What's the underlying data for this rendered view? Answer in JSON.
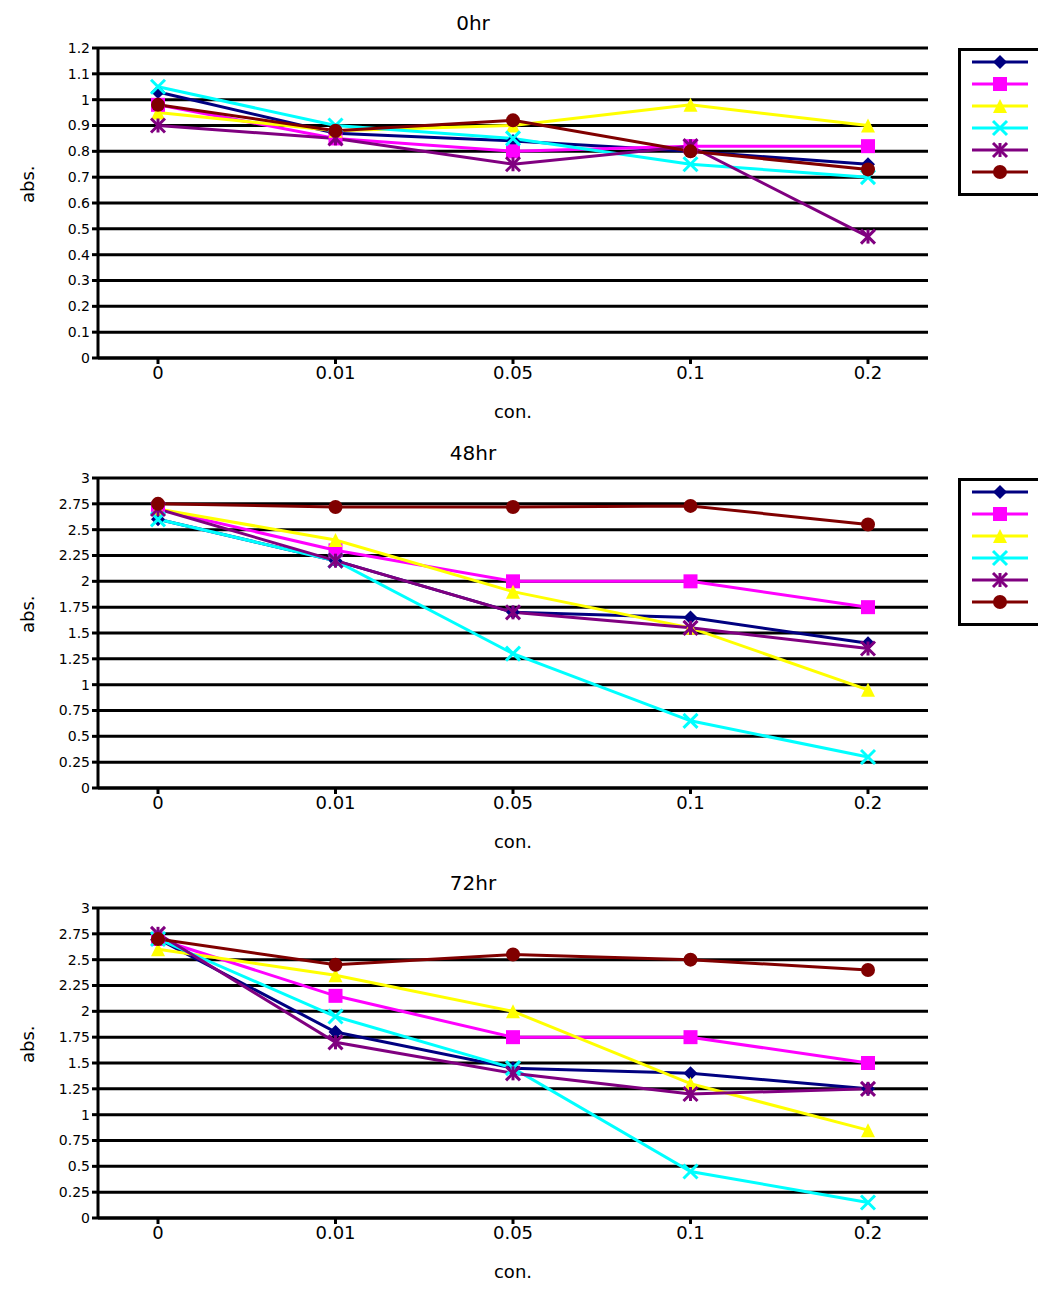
{
  "chart_data": [
    {
      "type": "line",
      "title": "0hr",
      "x_label": "con.",
      "y_label": "abs.",
      "categories": [
        "0",
        "0.01",
        "0.05",
        "0.1",
        "0.2"
      ],
      "ylim": [
        0,
        1.2
      ],
      "yticks": [
        0,
        0.1,
        0.2,
        0.3,
        0.4,
        0.5,
        0.6,
        0.7,
        0.8,
        0.9,
        1,
        1.1,
        1.2
      ],
      "grid": true,
      "legend": "right",
      "series": [
        {
          "color": "#000080",
          "marker": "diamond",
          "values": [
            1.03,
            0.87,
            0.84,
            0.8,
            0.75
          ]
        },
        {
          "color": "#ff00ff",
          "marker": "square",
          "values": [
            0.98,
            0.85,
            0.8,
            0.82,
            0.82
          ]
        },
        {
          "color": "#ffff00",
          "marker": "triangle",
          "values": [
            0.95,
            0.88,
            0.9,
            0.98,
            0.9
          ]
        },
        {
          "color": "#00ffff",
          "marker": "x",
          "values": [
            1.05,
            0.9,
            0.85,
            0.75,
            0.7
          ]
        },
        {
          "color": "#800080",
          "marker": "star",
          "values": [
            0.9,
            0.85,
            0.75,
            0.82,
            0.47
          ]
        },
        {
          "color": "#800000",
          "marker": "circle",
          "values": [
            0.98,
            0.88,
            0.92,
            0.8,
            0.73
          ]
        }
      ]
    },
    {
      "type": "line",
      "title": "48hr",
      "x_label": "con.",
      "y_label": "abs.",
      "categories": [
        "0",
        "0.01",
        "0.05",
        "0.1",
        "0.2"
      ],
      "ylim": [
        0,
        3
      ],
      "yticks": [
        0,
        0.25,
        0.5,
        0.75,
        1,
        1.25,
        1.5,
        1.75,
        2,
        2.25,
        2.5,
        2.75,
        3
      ],
      "grid": true,
      "legend": "right",
      "series": [
        {
          "color": "#000080",
          "marker": "diamond",
          "values": [
            2.6,
            2.2,
            1.7,
            1.65,
            1.4
          ]
        },
        {
          "color": "#ff00ff",
          "marker": "square",
          "values": [
            2.7,
            2.3,
            2.0,
            2.0,
            1.75
          ]
        },
        {
          "color": "#ffff00",
          "marker": "triangle",
          "values": [
            2.7,
            2.4,
            1.9,
            1.55,
            0.95
          ]
        },
        {
          "color": "#00ffff",
          "marker": "x",
          "values": [
            2.6,
            2.2,
            1.3,
            0.65,
            0.3
          ]
        },
        {
          "color": "#800080",
          "marker": "star",
          "values": [
            2.7,
            2.2,
            1.7,
            1.55,
            1.35
          ]
        },
        {
          "color": "#800000",
          "marker": "circle",
          "values": [
            2.75,
            2.72,
            2.72,
            2.73,
            2.55
          ]
        }
      ]
    },
    {
      "type": "line",
      "title": "72hr",
      "x_label": "con.",
      "y_label": "abs.",
      "categories": [
        "0",
        "0.01",
        "0.05",
        "0.1",
        "0.2"
      ],
      "ylim": [
        0,
        3
      ],
      "yticks": [
        0,
        0.25,
        0.5,
        0.75,
        1,
        1.25,
        1.5,
        1.75,
        2,
        2.25,
        2.5,
        2.75,
        3
      ],
      "grid": true,
      "series": [
        {
          "color": "#000080",
          "marker": "diamond",
          "values": [
            2.7,
            1.8,
            1.45,
            1.4,
            1.25
          ]
        },
        {
          "color": "#ff00ff",
          "marker": "square",
          "values": [
            2.7,
            2.15,
            1.75,
            1.75,
            1.5
          ]
        },
        {
          "color": "#ffff00",
          "marker": "triangle",
          "values": [
            2.6,
            2.35,
            2.0,
            1.3,
            0.85
          ]
        },
        {
          "color": "#00ffff",
          "marker": "x",
          "values": [
            2.7,
            1.95,
            1.45,
            0.45,
            0.15
          ]
        },
        {
          "color": "#800080",
          "marker": "star",
          "values": [
            2.75,
            1.7,
            1.4,
            1.2,
            1.25
          ]
        },
        {
          "color": "#800000",
          "marker": "circle",
          "values": [
            2.7,
            2.45,
            2.55,
            2.5,
            2.4
          ]
        }
      ]
    }
  ]
}
